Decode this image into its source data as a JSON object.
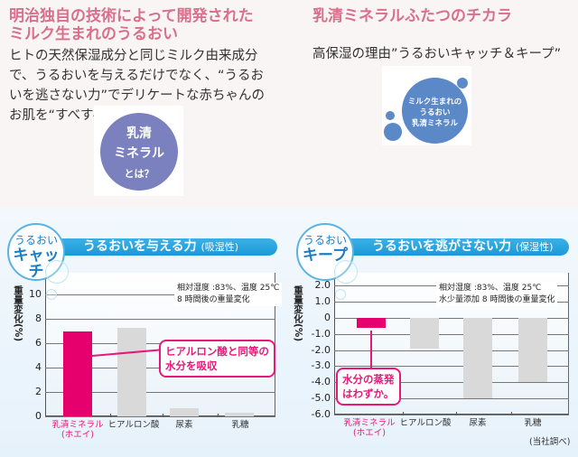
{
  "left_intro": {
    "title_lines": [
      "明治独自の技術によって開発された",
      "ミルク生まれのうるおい"
    ],
    "body": "ヒトの天然保湿成分と同じミルク由来成分で、うるおいを与えるだけでなく、“うるおいを逃さない力”でデリケートな赤ちゃんのお肌を“すべすべ”に。",
    "circle_lines": [
      "乳清",
      "ミネラル",
      "とは？"
    ],
    "circle_color": "#7b80bf"
  },
  "right_intro": {
    "title": "乳清ミネラルふたつのチカラ",
    "body": "高保湿の理由”うるおいキャッチ＆キープ”",
    "circle_lines": [
      "ミルク生まれの",
      "うるおい",
      "乳清ミネラル"
    ],
    "circle_color": "#5b88c7"
  },
  "colors": {
    "title_pink": "#d8708c",
    "accent_blue": "#1b9ad8",
    "highlight_bar": "#e6006e",
    "other_bar": "#d9d9d9"
  },
  "chart_data": [
    {
      "type": "bar",
      "badge_small": "うるおい",
      "badge_big": "キャッチ",
      "title": "うるおいを与える力",
      "title_sub": "(吸湿性)",
      "ylabel": "重量変化(%)",
      "ylim": [
        0,
        11.8
      ],
      "yticks": [
        "0",
        "2",
        "4",
        "6",
        "8",
        "10"
      ],
      "ytick_values": [
        0,
        2,
        4,
        6,
        8,
        10
      ],
      "note_lines": [
        "相対湿度 :83%、温度 25℃",
        "8 時間後の重量変化"
      ],
      "categories": [
        "乳清ミネラル(ホエイ)",
        "ヒアルロン酸",
        "尿素",
        "乳糖"
      ],
      "category_lines": [
        [
          "乳清ミネラル",
          "(ホエイ)"
        ],
        [
          "ヒアルロン酸"
        ],
        [
          "尿素"
        ],
        [
          "乳糖"
        ]
      ],
      "values": [
        7.0,
        7.3,
        0.7,
        0.3
      ],
      "callout_lines": [
        "ヒアルロン酸と同等の",
        "水分を吸収"
      ]
    },
    {
      "type": "bar",
      "badge_small": "うるおい",
      "badge_big": "キープ",
      "title": "うるおいを逃がさない力",
      "title_sub": "(保湿性)",
      "ylabel": "重量変化(%)",
      "ylim": [
        -6.0,
        2.8
      ],
      "yticks": [
        "2.0",
        "1.0",
        "0",
        "-1.0",
        "-2.0",
        "-3.0",
        "-4.0",
        "-5.0",
        "-6.0"
      ],
      "ytick_values": [
        2,
        1,
        0,
        -1,
        -2,
        -3,
        -4,
        -5,
        -6
      ],
      "note_lines": [
        "相対湿度 :83%、温度 25℃",
        "水少量添加 8 時間後の重量変化"
      ],
      "categories": [
        "乳清ミネラル(ホエイ)",
        "ヒアルロン酸",
        "尿素",
        "乳糖"
      ],
      "category_lines": [
        [
          "乳清ミネラル",
          "(ホエイ)"
        ],
        [
          "ヒアルロン酸"
        ],
        [
          "尿素"
        ],
        [
          "乳糖"
        ]
      ],
      "values": [
        -0.6,
        -1.9,
        -5.0,
        -4.0
      ],
      "callout_lines": [
        "水分の蒸発",
        "はわずか。"
      ],
      "source": "(当社調べ)"
    }
  ]
}
